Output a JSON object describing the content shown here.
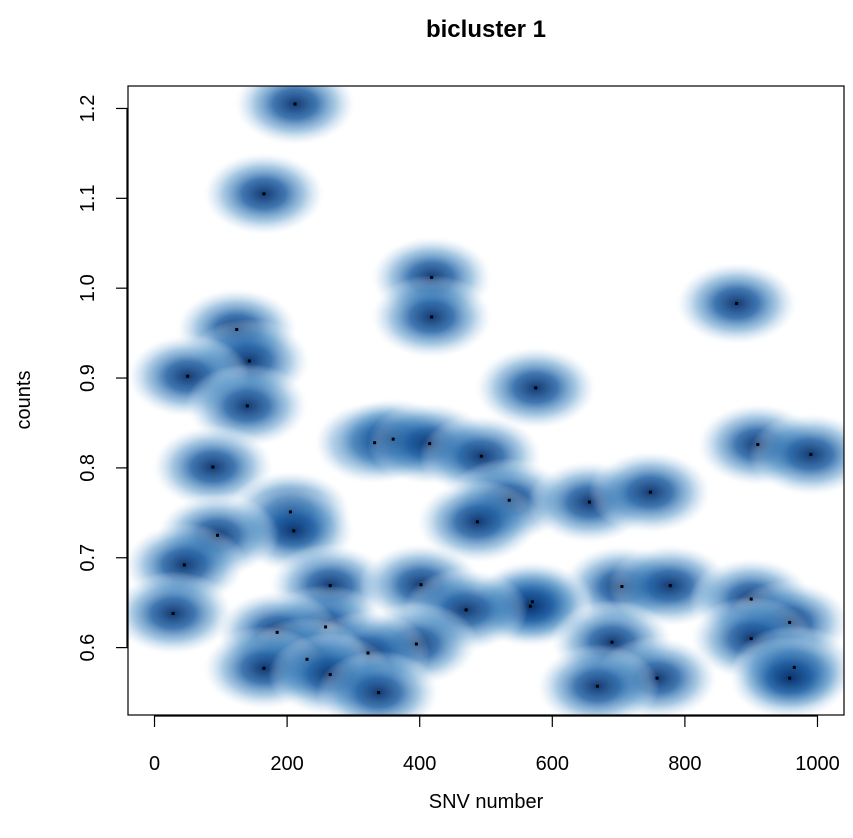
{
  "chart_data": {
    "type": "scatter",
    "style": "smoothed density scatter (blue)",
    "title": "bicluster 1",
    "xlabel": "SNV number",
    "ylabel": "counts",
    "xlim": [
      -40,
      1040
    ],
    "ylim": [
      0.525,
      1.225
    ],
    "xticks": [
      "0",
      "200",
      "400",
      "600",
      "800",
      "1000"
    ],
    "yticks": [
      "0.6",
      "0.7",
      "0.8",
      "0.9",
      "1.0",
      "1.1",
      "1.2"
    ],
    "grid": false,
    "colors": {
      "density": "#08519c",
      "point": "#000000"
    },
    "points": [
      {
        "x": 212,
        "y": 1.205
      },
      {
        "x": 165,
        "y": 1.105
      },
      {
        "x": 418,
        "y": 1.012
      },
      {
        "x": 418,
        "y": 0.968
      },
      {
        "x": 878,
        "y": 0.983
      },
      {
        "x": 124,
        "y": 0.954
      },
      {
        "x": 143,
        "y": 0.919
      },
      {
        "x": 50,
        "y": 0.902
      },
      {
        "x": 575,
        "y": 0.889
      },
      {
        "x": 140,
        "y": 0.869
      },
      {
        "x": 332,
        "y": 0.828
      },
      {
        "x": 360,
        "y": 0.832
      },
      {
        "x": 415,
        "y": 0.827
      },
      {
        "x": 493,
        "y": 0.813
      },
      {
        "x": 910,
        "y": 0.826
      },
      {
        "x": 990,
        "y": 0.815
      },
      {
        "x": 88,
        "y": 0.801
      },
      {
        "x": 535,
        "y": 0.764
      },
      {
        "x": 656,
        "y": 0.762
      },
      {
        "x": 748,
        "y": 0.773
      },
      {
        "x": 205,
        "y": 0.751
      },
      {
        "x": 487,
        "y": 0.74
      },
      {
        "x": 210,
        "y": 0.73
      },
      {
        "x": 95,
        "y": 0.725
      },
      {
        "x": 45,
        "y": 0.692
      },
      {
        "x": 265,
        "y": 0.669
      },
      {
        "x": 402,
        "y": 0.67
      },
      {
        "x": 705,
        "y": 0.668
      },
      {
        "x": 778,
        "y": 0.669
      },
      {
        "x": 900,
        "y": 0.654
      },
      {
        "x": 570,
        "y": 0.651
      },
      {
        "x": 567,
        "y": 0.646
      },
      {
        "x": 470,
        "y": 0.642
      },
      {
        "x": 28,
        "y": 0.638
      },
      {
        "x": 258,
        "y": 0.623
      },
      {
        "x": 958,
        "y": 0.628
      },
      {
        "x": 185,
        "y": 0.617
      },
      {
        "x": 900,
        "y": 0.61
      },
      {
        "x": 690,
        "y": 0.606
      },
      {
        "x": 395,
        "y": 0.604
      },
      {
        "x": 322,
        "y": 0.594
      },
      {
        "x": 230,
        "y": 0.587
      },
      {
        "x": 165,
        "y": 0.577
      },
      {
        "x": 265,
        "y": 0.57
      },
      {
        "x": 965,
        "y": 0.578
      },
      {
        "x": 958,
        "y": 0.566
      },
      {
        "x": 758,
        "y": 0.566
      },
      {
        "x": 668,
        "y": 0.557
      },
      {
        "x": 338,
        "y": 0.55
      }
    ]
  }
}
